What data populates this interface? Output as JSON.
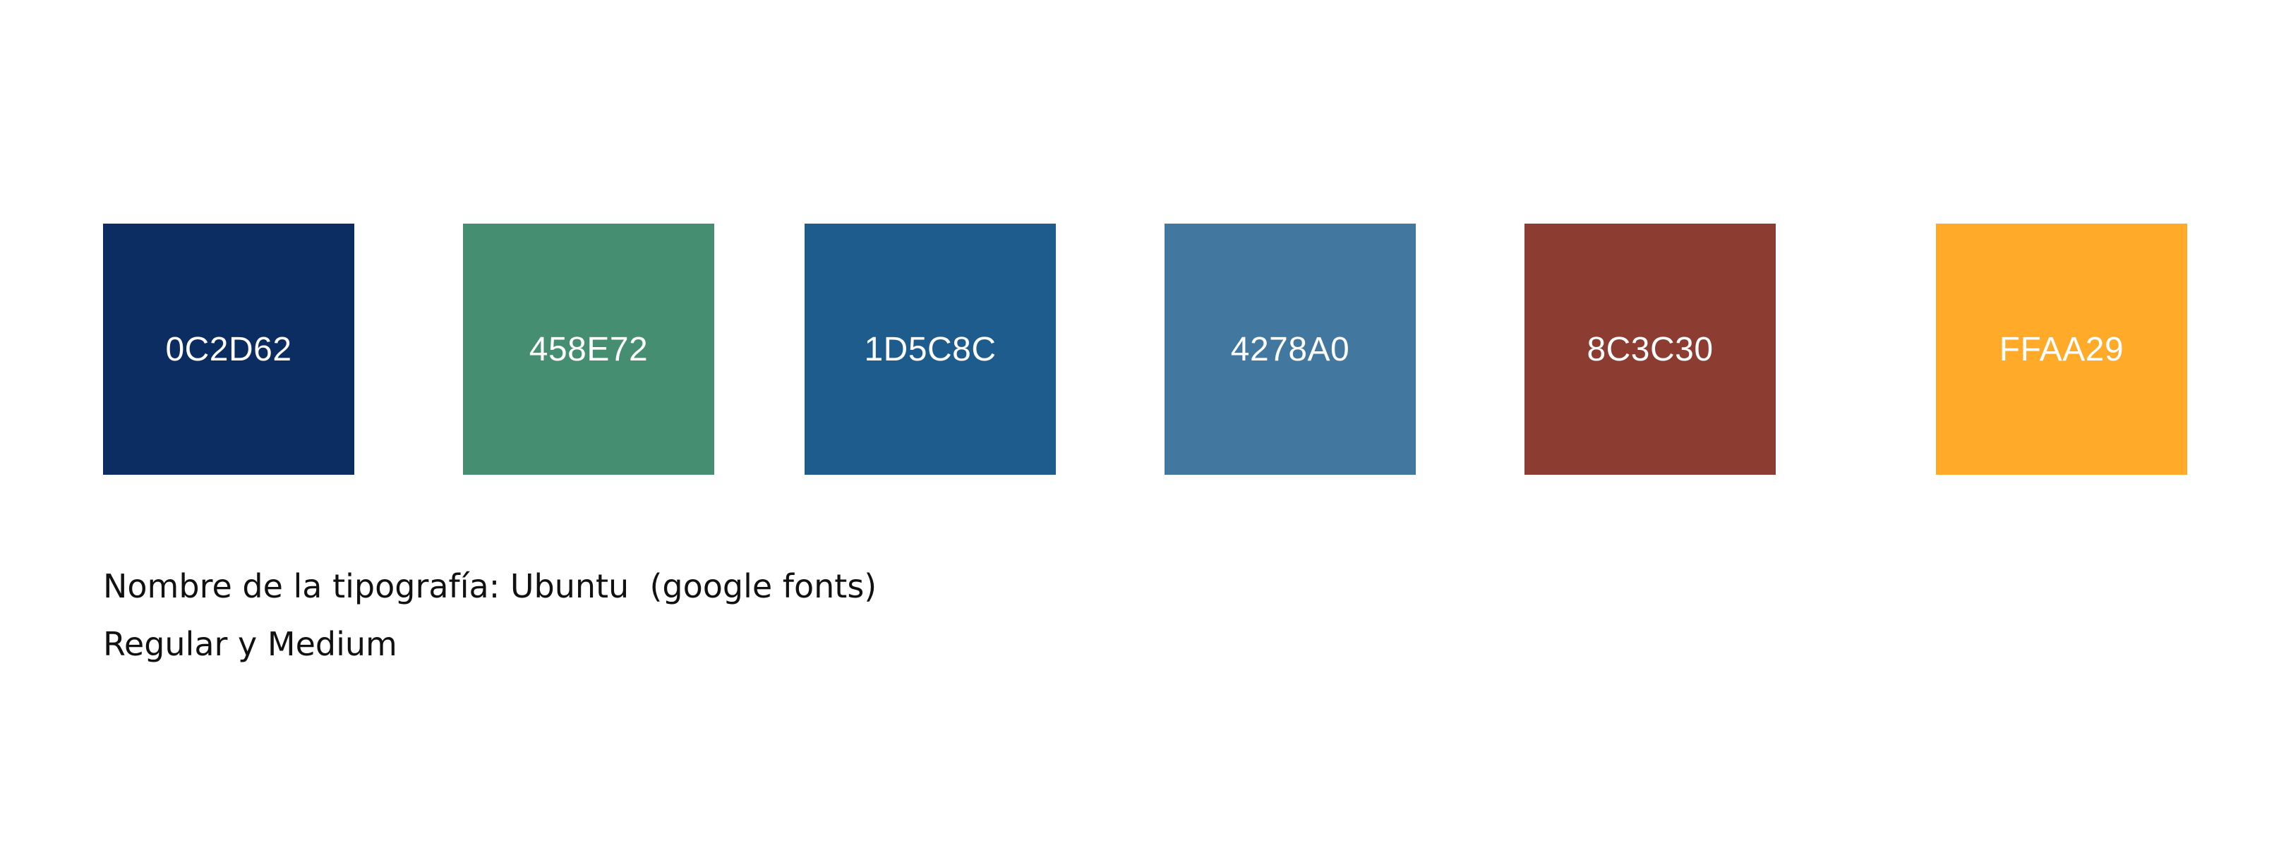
{
  "swatches": [
    {
      "hex": "0C2D62",
      "color": "#0C2D62"
    },
    {
      "hex": "458E72",
      "color": "#458E72"
    },
    {
      "hex": "1D5C8C",
      "color": "#1D5C8C"
    },
    {
      "hex": "4278A0",
      "color": "#4278A0"
    },
    {
      "hex": "8C3C30",
      "color": "#8C3C30"
    },
    {
      "hex": "FFAA29",
      "color": "#FFAA29"
    }
  ],
  "typography": {
    "line1": "Nombre de la tipografía: Ubuntu  (google fonts)",
    "line2": "Regular y Medium"
  }
}
